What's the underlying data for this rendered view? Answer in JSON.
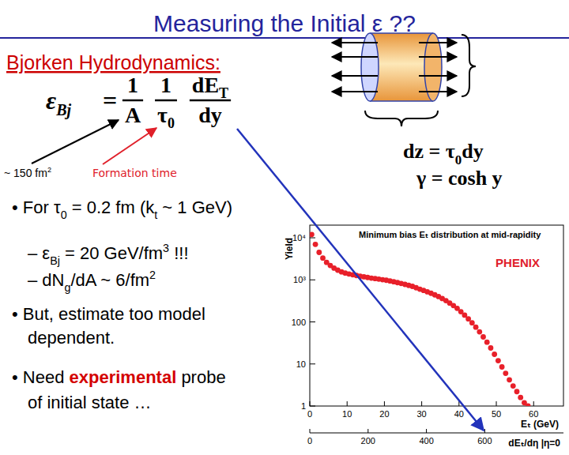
{
  "slide": {
    "title": "Measuring the Initial ε ??",
    "heading": "Bjorken Hydrodynamics:",
    "formula": {
      "lhs": "ε",
      "lhs_sub": "Bj",
      "eq": "=",
      "fractions": [
        {
          "num": "1",
          "den": "A"
        },
        {
          "num": "1",
          "den": "τ",
          "den_sub": "0"
        },
        {
          "num": "dE",
          "num_sub": "T",
          "den": "dy"
        }
      ]
    },
    "notes": [
      [
        {
          "t": "~ 150 fm"
        },
        {
          "t": "2",
          "sup": true
        }
      ],
      [
        {
          "t": "Formation time"
        }
      ]
    ],
    "relations": [
      [
        {
          "t": "dz = τ"
        },
        {
          "t": "0",
          "sub": true
        },
        {
          "t": "dy"
        }
      ],
      [
        {
          "t": "γ = cosh y"
        }
      ]
    ],
    "bullets": [
      [
        {
          "t": "• For τ"
        },
        {
          "t": "0",
          "sub": true
        },
        {
          "t": " = 0.2 fm (k"
        },
        {
          "t": "t",
          "sub": true
        },
        {
          "t": " ~ 1 GeV)"
        }
      ],
      [
        {
          "t": "– ε"
        },
        {
          "t": "Bj",
          "sub": true
        },
        {
          "t": " = 20 GeV/fm"
        },
        {
          "t": "3",
          "sup": true
        },
        {
          "t": " !!!"
        }
      ],
      [
        {
          "t": "– dN"
        },
        {
          "t": "g",
          "sub": true
        },
        {
          "t": "/dA ~ 6/fm"
        },
        {
          "t": "2",
          "sup": true
        }
      ],
      [
        {
          "t": "• But, estimate too model"
        }
      ],
      [
        {
          "t": "dependent."
        }
      ],
      [
        {
          "t": "• Need "
        },
        {
          "t": "experimental",
          "em": true
        },
        {
          "t": " probe"
        }
      ],
      [
        {
          "t": "of initial state …"
        }
      ]
    ]
  },
  "chart_data": {
    "type": "scatter",
    "title": "Minimum bias Eₜ distribution at mid-rapidity",
    "x_label": "Eₜ (GeV)",
    "y_label": "Yield",
    "x2_label": "dEₜ/dη |η=0",
    "annotations": [
      "PHENIX"
    ],
    "color": "#e8202a",
    "marker": "circle",
    "log": "y",
    "grid": false,
    "xlim": [
      0,
      68
    ],
    "xticks": [
      0,
      10,
      20,
      30,
      40,
      50,
      60
    ],
    "x2lim": [
      0,
      870
    ],
    "x2ticks": [
      0,
      200,
      400,
      600
    ],
    "ylim": [
      1,
      20000
    ],
    "yticks": [
      1,
      10,
      100,
      {
        "value": 1000,
        "label": "10³"
      },
      {
        "value": 10000,
        "label": "10⁴"
      }
    ],
    "x": [
      0.5,
      1.5,
      2.5,
      3.5,
      4.5,
      5.5,
      6.5,
      7.5,
      8.5,
      9.5,
      10.5,
      11.5,
      12.5,
      13.5,
      14.5,
      15.5,
      16.5,
      17.5,
      18.5,
      19.5,
      20.5,
      21.5,
      22.5,
      23.5,
      24.5,
      25.5,
      26.5,
      27.5,
      28.5,
      29.5,
      30.5,
      31.5,
      32.5,
      33.5,
      34.5,
      35.5,
      36.5,
      37.5,
      38.5,
      39.5,
      40.5,
      41.5,
      42.5,
      43.5,
      44.5,
      45.5,
      46.5,
      47.5,
      48.5,
      49.5,
      50.5,
      51.5,
      52.5,
      53.5,
      54.5,
      55.5,
      56.5,
      57.5,
      58.5
    ],
    "values": [
      12000,
      7000,
      4500,
      3300,
      2600,
      2200,
      1900,
      1700,
      1550,
      1450,
      1380,
      1320,
      1270,
      1220,
      1180,
      1140,
      1100,
      1070,
      1040,
      1010,
      980,
      940,
      900,
      860,
      820,
      780,
      740,
      700,
      650,
      600,
      560,
      520,
      480,
      440,
      400,
      360,
      320,
      280,
      245,
      210,
      175,
      145,
      118,
      95,
      75,
      58,
      44,
      33,
      24,
      17,
      12,
      8.5,
      6,
      4.2,
      3,
      2.2,
      1.6,
      1.2,
      1
    ]
  }
}
